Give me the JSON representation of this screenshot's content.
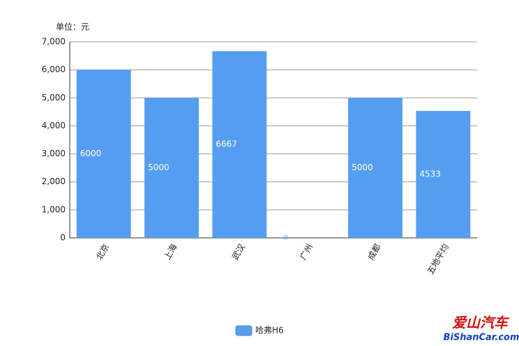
{
  "chart_data": {
    "type": "bar",
    "y_axis_label": "单位：元",
    "categories": [
      "北京",
      "上海",
      "武汉",
      "广州",
      "成都",
      "五地平均"
    ],
    "series": [
      {
        "name": "哈弗H6",
        "color": "#559df0",
        "values": [
          6000,
          5000,
          6667,
          0,
          5000,
          4533
        ]
      }
    ],
    "ylim": [
      0,
      7000
    ],
    "yticks": [
      0,
      {
        "value": 1000,
        "label": "1,000"
      },
      {
        "value": 2000,
        "label": "2,000"
      },
      {
        "value": 3000,
        "label": "3,000"
      },
      {
        "value": 4000,
        "label": "4,000"
      },
      {
        "value": 5000,
        "label": "5,000"
      },
      {
        "value": 6000,
        "label": "6,000"
      },
      {
        "value": 7000,
        "label": "7,000"
      }
    ],
    "grid": true,
    "legend": "bottom"
  },
  "watermark": {
    "name": "爱山汽车",
    "url": "BiShanCar.com"
  }
}
